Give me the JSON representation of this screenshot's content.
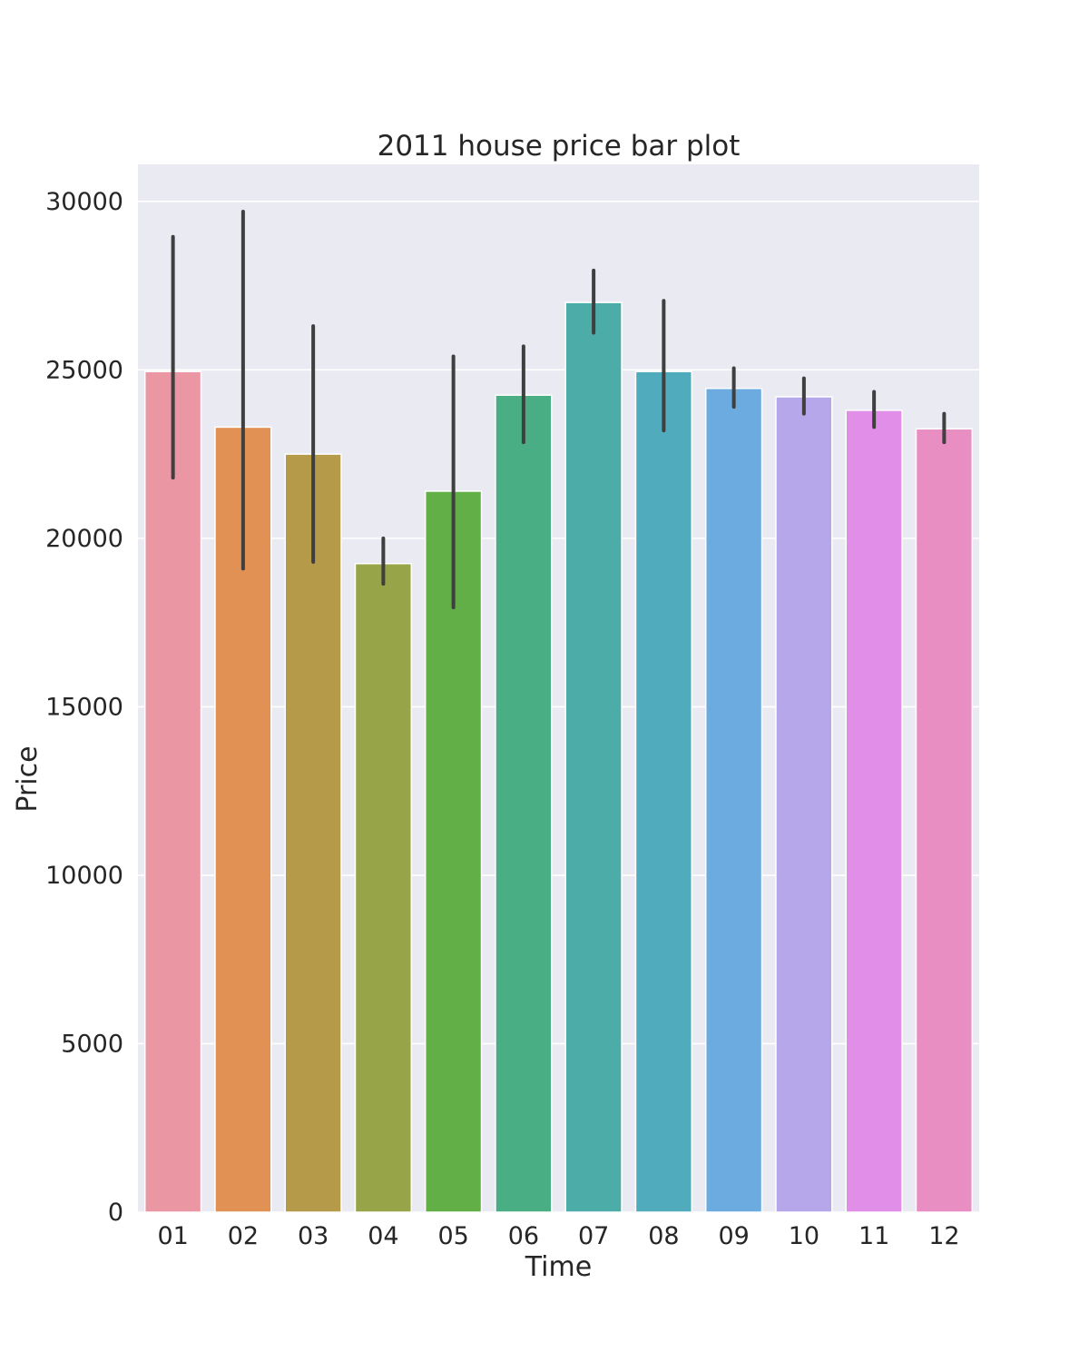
{
  "chart_data": {
    "type": "bar",
    "title": "2011 house price bar plot",
    "xlabel": "Time",
    "ylabel": "Price",
    "categories": [
      "01",
      "02",
      "03",
      "04",
      "05",
      "06",
      "07",
      "08",
      "09",
      "10",
      "11",
      "12"
    ],
    "values": [
      24950,
      23300,
      22500,
      19250,
      21400,
      24250,
      27000,
      24950,
      24450,
      24200,
      23800,
      23250
    ],
    "error_low": [
      21800,
      19100,
      19300,
      18650,
      17950,
      22850,
      26100,
      23200,
      23900,
      23700,
      23300,
      22850
    ],
    "error_high": [
      28950,
      29700,
      26300,
      20000,
      25400,
      25700,
      27950,
      27050,
      25050,
      24750,
      24350,
      23700
    ],
    "colors": [
      "#ea96a3",
      "#e19153",
      "#b59b49",
      "#98a448",
      "#62ae47",
      "#4aae84",
      "#4cada8",
      "#50abbd",
      "#6cabe0",
      "#b6a7eb",
      "#e08ee8",
      "#e98ec3"
    ],
    "ylim": [
      0,
      31100
    ],
    "yticks": [
      0,
      5000,
      10000,
      15000,
      20000,
      25000,
      30000
    ],
    "grid": true,
    "style": {
      "plot_background": "#eaeaf2",
      "grid_color": "#ffffff",
      "errorbar_color": "#3f3f3f"
    }
  }
}
